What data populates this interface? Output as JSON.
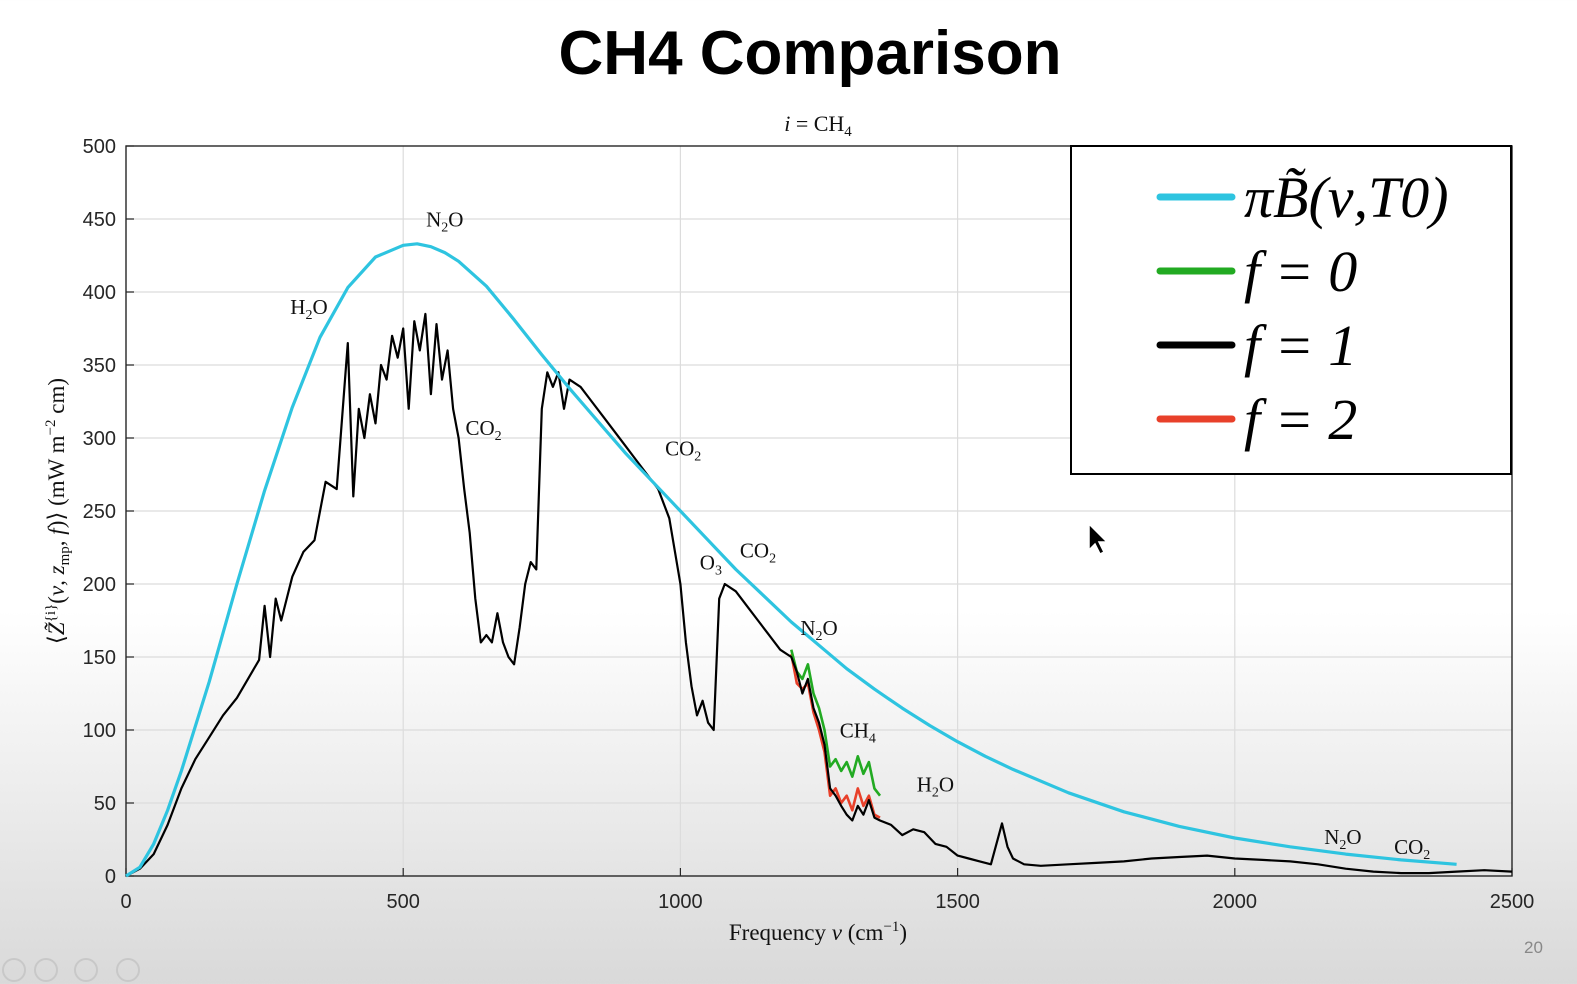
{
  "slide": {
    "title": "CH4 Comparison",
    "page_number": "20"
  },
  "chart_data": {
    "type": "line",
    "title": "i =  CH4",
    "xlabel": "Frequency ν (cm−1)",
    "ylabel": "⟨Z̃{i}(ν, z_mp, f)⟩ (mW m−2 cm)",
    "xlim": [
      0,
      2500
    ],
    "ylim": [
      0,
      500
    ],
    "xticks": [
      0,
      500,
      1000,
      1500,
      2000,
      2500
    ],
    "yticks": [
      0,
      50,
      100,
      150,
      200,
      250,
      300,
      350,
      400,
      450,
      500
    ],
    "grid": true,
    "legend_position": "top-right",
    "series": [
      {
        "name": "πB̃(ν,T0)",
        "color": "#2ec4e0",
        "x": [
          0,
          25,
          50,
          75,
          100,
          150,
          200,
          250,
          300,
          350,
          400,
          450,
          500,
          525,
          550,
          575,
          600,
          650,
          700,
          750,
          800,
          850,
          900,
          950,
          1000,
          1050,
          1100,
          1150,
          1200,
          1250,
          1300,
          1350,
          1400,
          1450,
          1500,
          1550,
          1600,
          1700,
          1800,
          1900,
          2000,
          2100,
          2200,
          2300,
          2400
        ],
        "y": [
          0,
          6,
          22,
          45,
          72,
          133,
          200,
          264,
          321,
          369,
          403,
          424,
          432,
          433,
          431,
          427,
          421,
          404,
          381,
          357,
          334,
          312,
          290,
          270,
          250,
          230,
          210,
          192,
          174,
          158,
          142,
          128,
          115,
          103,
          92,
          82,
          73,
          57,
          44,
          34,
          26,
          20,
          15,
          11,
          8
        ]
      },
      {
        "name": "f = 0",
        "color": "#22aa22",
        "x": [
          1200,
          1210,
          1220,
          1230,
          1240,
          1250,
          1260,
          1270,
          1280,
          1290,
          1300,
          1310,
          1320,
          1330,
          1340,
          1350,
          1360
        ],
        "y": [
          155,
          140,
          135,
          145,
          125,
          115,
          100,
          75,
          80,
          72,
          78,
          68,
          82,
          70,
          78,
          60,
          55
        ]
      },
      {
        "name": "f = 1",
        "color": "#000000",
        "x": [
          0,
          25,
          50,
          75,
          100,
          125,
          150,
          175,
          200,
          220,
          240,
          250,
          260,
          270,
          280,
          300,
          320,
          340,
          360,
          380,
          395,
          400,
          410,
          420,
          430,
          440,
          450,
          460,
          470,
          480,
          490,
          500,
          510,
          520,
          530,
          540,
          550,
          560,
          570,
          580,
          590,
          600,
          610,
          620,
          630,
          640,
          650,
          660,
          670,
          680,
          690,
          700,
          710,
          720,
          730,
          740,
          750,
          760,
          770,
          780,
          790,
          800,
          820,
          840,
          860,
          880,
          900,
          920,
          940,
          960,
          980,
          1000,
          1010,
          1020,
          1030,
          1040,
          1050,
          1060,
          1070,
          1080,
          1100,
          1120,
          1140,
          1160,
          1180,
          1200,
          1210,
          1220,
          1230,
          1240,
          1250,
          1260,
          1270,
          1280,
          1290,
          1300,
          1310,
          1320,
          1330,
          1340,
          1350,
          1360,
          1380,
          1400,
          1420,
          1440,
          1460,
          1480,
          1500,
          1520,
          1540,
          1560,
          1580,
          1590,
          1600,
          1620,
          1650,
          1700,
          1750,
          1800,
          1850,
          1900,
          1950,
          2000,
          2050,
          2100,
          2150,
          2200,
          2250,
          2300,
          2350,
          2400,
          2450,
          2500
        ],
        "y": [
          0,
          5,
          15,
          35,
          60,
          80,
          95,
          110,
          122,
          135,
          148,
          185,
          150,
          190,
          175,
          205,
          222,
          230,
          270,
          265,
          340,
          365,
          260,
          320,
          300,
          330,
          310,
          350,
          340,
          370,
          355,
          375,
          320,
          380,
          360,
          385,
          330,
          378,
          340,
          360,
          320,
          300,
          265,
          235,
          190,
          160,
          165,
          160,
          180,
          160,
          150,
          145,
          170,
          200,
          215,
          210,
          320,
          345,
          335,
          345,
          320,
          340,
          335,
          325,
          315,
          305,
          295,
          285,
          275,
          265,
          245,
          200,
          160,
          130,
          110,
          120,
          105,
          100,
          190,
          200,
          195,
          185,
          175,
          165,
          155,
          150,
          140,
          125,
          135,
          115,
          105,
          90,
          60,
          55,
          48,
          42,
          38,
          48,
          42,
          52,
          40,
          38,
          35,
          28,
          32,
          30,
          22,
          20,
          14,
          12,
          10,
          8,
          36,
          20,
          12,
          8,
          7,
          8,
          9,
          10,
          12,
          13,
          14,
          12,
          11,
          10,
          8,
          5,
          3,
          2,
          2,
          3,
          4,
          3
        ],
        "annotations_note": "approximate"
      },
      {
        "name": "f = 2",
        "color": "#e8402a",
        "x": [
          1200,
          1210,
          1220,
          1230,
          1240,
          1250,
          1260,
          1270,
          1280,
          1290,
          1300,
          1310,
          1320,
          1330,
          1340,
          1350,
          1360
        ],
        "y": [
          152,
          132,
          128,
          132,
          112,
          100,
          85,
          55,
          60,
          50,
          55,
          45,
          60,
          48,
          55,
          42,
          40
        ]
      }
    ],
    "annotations": [
      {
        "text": "H2O",
        "x": 330,
        "y": 385
      },
      {
        "text": "N2O",
        "x": 575,
        "y": 445
      },
      {
        "text": "CO2",
        "x": 645,
        "y": 302
      },
      {
        "text": "CO2",
        "x": 1005,
        "y": 288
      },
      {
        "text": "O3",
        "x": 1055,
        "y": 210
      },
      {
        "text": "CO2",
        "x": 1140,
        "y": 218
      },
      {
        "text": "N2O",
        "x": 1250,
        "y": 165
      },
      {
        "text": "CH4",
        "x": 1320,
        "y": 95
      },
      {
        "text": "H2O",
        "x": 1460,
        "y": 58
      },
      {
        "text": "N2O",
        "x": 2195,
        "y": 22
      },
      {
        "text": "CO2",
        "x": 2320,
        "y": 15
      }
    ],
    "tick_labels_x": [
      "0",
      "500",
      "1000",
      "1500",
      "2000",
      "2500"
    ],
    "tick_labels_y": [
      "0",
      "50",
      "100",
      "150",
      "200",
      "250",
      "300",
      "350",
      "400",
      "450",
      "500"
    ],
    "legend_labels": [
      "πB̃(ν,T0)",
      "f = 0",
      "f = 1",
      "f = 2"
    ]
  }
}
